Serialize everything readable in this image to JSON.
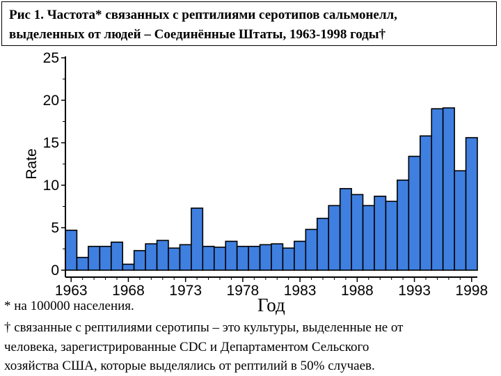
{
  "title": {
    "line1": "Рис 1. Частота* связанных с рептилиями серотипов сальмонелл,",
    "line2": "выделенных от людей – Соединённые Штаты, 1963-1998 годы†"
  },
  "footnotes": {
    "asterisk": "* на 100000 населения.",
    "dagger_line1": "† связанные с рептилиями серотипы – это культуры, выделенные не от",
    "dagger_line2": "человека, зарегистрированные CDC и Департаментом Сельского",
    "dagger_line3": "хозяйства США, которые выделялись от рептилий в 50% случаев."
  },
  "chart_data": {
    "type": "bar",
    "xlabel": "Год",
    "ylabel": "Rate",
    "ylim": [
      0,
      25
    ],
    "yticks": [
      "0",
      "5",
      "10",
      "15",
      "20",
      "25"
    ],
    "xticks": [
      "1963",
      "1968",
      "1973",
      "1978",
      "1983",
      "1988",
      "1993",
      "1998"
    ],
    "categories": [
      "1963",
      "1964",
      "1965",
      "1966",
      "1967",
      "1968",
      "1969",
      "1970",
      "1971",
      "1972",
      "1973",
      "1974",
      "1975",
      "1976",
      "1977",
      "1978",
      "1979",
      "1980",
      "1981",
      "1982",
      "1983",
      "1984",
      "1985",
      "1986",
      "1987",
      "1988",
      "1989",
      "1990",
      "1991",
      "1992",
      "1993",
      "1994",
      "1995",
      "1996",
      "1997",
      "1998"
    ],
    "values": [
      4.7,
      1.5,
      2.8,
      2.8,
      3.3,
      0.7,
      2.3,
      3.1,
      3.5,
      2.6,
      3.0,
      7.3,
      2.8,
      2.7,
      3.4,
      2.8,
      2.8,
      3.0,
      3.1,
      2.6,
      3.4,
      4.8,
      6.1,
      7.6,
      9.6,
      8.9,
      7.6,
      8.7,
      8.1,
      10.6,
      13.4,
      15.8,
      19.0,
      19.1,
      11.7,
      15.6
    ],
    "grid": false,
    "bar_color": "#3f7fe0"
  }
}
